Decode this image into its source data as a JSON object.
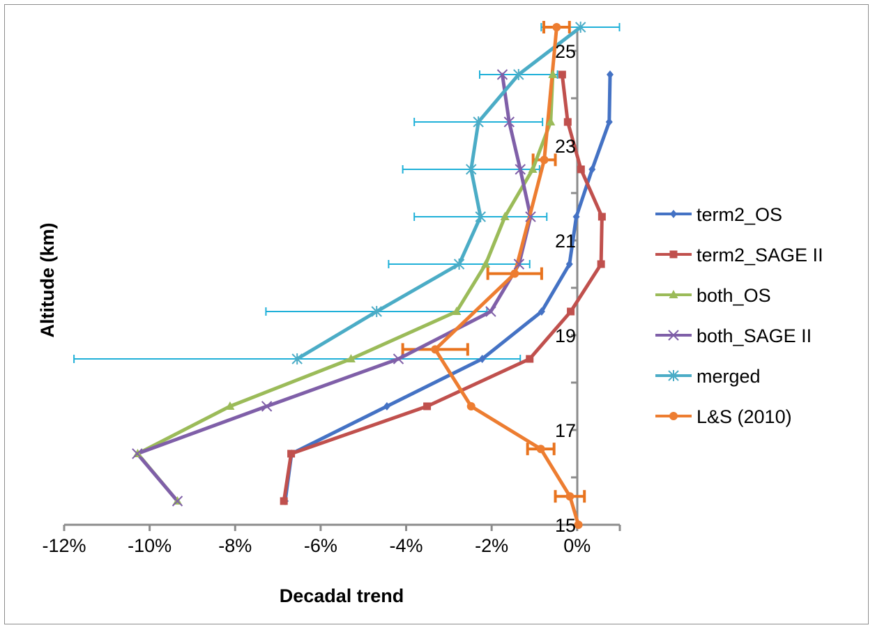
{
  "chart_data": {
    "type": "line",
    "title": "",
    "xlabel": "Decadal trend",
    "ylabel": "Altitude (km)",
    "xlim": [
      -0.12,
      0.01
    ],
    "ylim": [
      15,
      25.5
    ],
    "x_ticks": [
      -0.12,
      -0.1,
      -0.08,
      -0.06,
      -0.04,
      -0.02,
      0.0
    ],
    "x_tick_labels": [
      "-12%",
      "-10%",
      "-8%",
      "-6%",
      "-4%",
      "-2%",
      "0%"
    ],
    "y_ticks": [
      15,
      17,
      19,
      21,
      23,
      25
    ],
    "y_tick_labels": [
      "15",
      "17",
      "19",
      "21",
      "23",
      "25"
    ],
    "grid": false,
    "legend_position": "right",
    "series": [
      {
        "name": "term2_OS",
        "color": "#4472C4",
        "marker": "diamond",
        "points": [
          [
            -0.0683,
            15.5
          ],
          [
            -0.0668,
            16.5
          ],
          [
            -0.0445,
            17.5
          ],
          [
            -0.0222,
            18.5
          ],
          [
            -0.0083,
            19.5
          ],
          [
            -0.0018,
            20.5
          ],
          [
            -0.0002,
            21.5
          ],
          [
            0.0035,
            22.5
          ],
          [
            0.0075,
            23.5
          ],
          [
            0.0077,
            24.5
          ]
        ]
      },
      {
        "name": "term2_SAGE II",
        "color": "#C0504D",
        "marker": "square",
        "points": [
          [
            -0.0686,
            15.5
          ],
          [
            -0.0669,
            16.5
          ],
          [
            -0.0351,
            17.5
          ],
          [
            -0.0111,
            18.5
          ],
          [
            -0.0015,
            19.5
          ],
          [
            0.0056,
            20.5
          ],
          [
            0.0058,
            21.5
          ],
          [
            0.0009,
            22.5
          ],
          [
            -0.0022,
            23.5
          ],
          [
            -0.0035,
            24.5
          ]
        ]
      },
      {
        "name": "both_OS",
        "color": "#9BBB59",
        "marker": "triangle",
        "points": [
          [
            -0.0935,
            15.5
          ],
          [
            -0.1028,
            16.5
          ],
          [
            -0.0812,
            17.5
          ],
          [
            -0.0529,
            18.5
          ],
          [
            -0.0282,
            19.5
          ],
          [
            -0.0214,
            20.5
          ],
          [
            -0.0169,
            21.5
          ],
          [
            -0.0104,
            22.5
          ],
          [
            -0.0062,
            23.5
          ],
          [
            -0.0057,
            24.5
          ]
        ]
      },
      {
        "name": "both_SAGE II",
        "color": "#7F5FA8",
        "marker": "x",
        "points": [
          [
            -0.0935,
            15.5
          ],
          [
            -0.1029,
            16.5
          ],
          [
            -0.0726,
            17.5
          ],
          [
            -0.0418,
            18.5
          ],
          [
            -0.0202,
            19.5
          ],
          [
            -0.0136,
            20.5
          ],
          [
            -0.0109,
            21.5
          ],
          [
            -0.0133,
            22.5
          ],
          [
            -0.0159,
            23.5
          ],
          [
            -0.0175,
            24.5
          ]
        ]
      },
      {
        "name": "merged",
        "color": "#4BACC6",
        "marker": "asterisk",
        "points": [
          [
            -0.0655,
            18.5
          ],
          [
            -0.0469,
            19.5
          ],
          [
            -0.0276,
            20.5
          ],
          [
            -0.0226,
            21.5
          ],
          [
            -0.0248,
            22.5
          ],
          [
            -0.0231,
            23.5
          ],
          [
            -0.0137,
            24.5
          ],
          [
            0.0008,
            25.5
          ]
        ],
        "error_bars": [
          [
            -0.1177,
            -0.0133
          ],
          [
            -0.0728,
            -0.0211
          ],
          [
            -0.0441,
            -0.0111
          ],
          [
            -0.0381,
            -0.0071
          ],
          [
            -0.0408,
            -0.0088
          ],
          [
            -0.0381,
            -0.0081
          ],
          [
            -0.0228,
            -0.0046
          ],
          [
            -0.0084,
            0.0099
          ]
        ]
      },
      {
        "name": "L&S (2010)",
        "color": "#ED7D31",
        "marker": "circle",
        "points": [
          [
            0.0003,
            15.0
          ],
          [
            -0.0017,
            15.6
          ],
          [
            -0.0085,
            16.6
          ],
          [
            -0.0248,
            17.5
          ],
          [
            -0.0332,
            18.7
          ],
          [
            -0.0146,
            20.3
          ],
          [
            -0.0077,
            22.7
          ],
          [
            -0.0048,
            25.5
          ]
        ],
        "error_bars": [
          [
            -0.0051,
            0.0017
          ],
          [
            -0.0116,
            -0.0054
          ],
          [
            -0.0408,
            -0.0256
          ],
          [
            -0.0209,
            -0.0083
          ],
          [
            -0.0103,
            -0.0051
          ],
          [
            -0.0078,
            -0.0018
          ]
        ],
        "error_bar_points": [
          1,
          2,
          4,
          5,
          6,
          7
        ]
      }
    ]
  }
}
